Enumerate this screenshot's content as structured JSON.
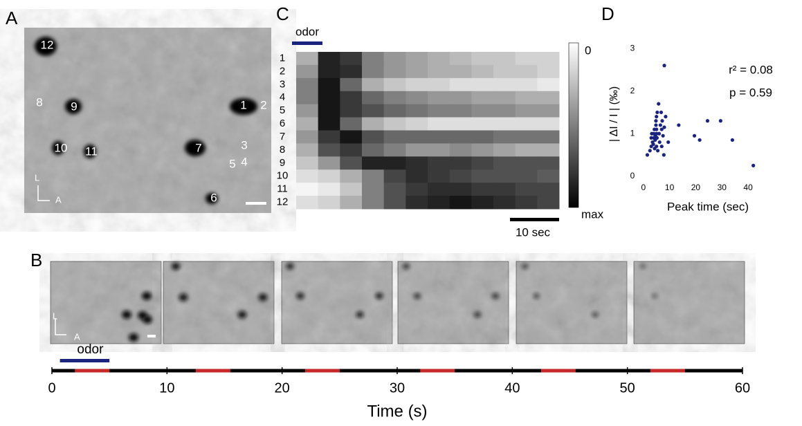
{
  "panel_labels": [
    "A",
    "B",
    "C",
    "D"
  ],
  "panel_a": {
    "cell_labels": [
      "12",
      "8",
      "9",
      "1",
      "2",
      "10",
      "11",
      "7",
      "3",
      "5",
      "4",
      "6"
    ],
    "axis_labels": [
      "L",
      "A"
    ]
  },
  "panel_b": {
    "axis_labels": [
      "L",
      "A"
    ]
  },
  "panel_c": {
    "odor_label": "odor",
    "colorbar_labels": [
      "0",
      "max"
    ],
    "scale_bar_label": "10 sec"
  },
  "chart_data": [
    {
      "type": "heatmap",
      "row_labels": [
        "1",
        "2",
        "3",
        "4",
        "5",
        "6",
        "7",
        "8",
        "9",
        "10",
        "11",
        "12"
      ],
      "zlim": [
        0,
        1
      ],
      "values": [
        [
          0.3,
          0.9,
          0.8,
          0.5,
          0.4,
          0.35,
          0.3,
          0.25,
          0.2,
          0.2,
          0.15,
          0.15
        ],
        [
          0.4,
          0.9,
          0.85,
          0.5,
          0.4,
          0.35,
          0.3,
          0.3,
          0.25,
          0.2,
          0.2,
          0.15
        ],
        [
          0.5,
          0.95,
          0.6,
          0.3,
          0.2,
          0.15,
          0.15,
          0.1,
          0.1,
          0.1,
          0.1,
          0.05
        ],
        [
          0.5,
          0.95,
          0.8,
          0.6,
          0.5,
          0.45,
          0.4,
          0.4,
          0.35,
          0.35,
          0.3,
          0.3
        ],
        [
          0.4,
          0.95,
          0.8,
          0.7,
          0.6,
          0.55,
          0.5,
          0.5,
          0.45,
          0.45,
          0.4,
          0.4
        ],
        [
          0.3,
          0.95,
          0.6,
          0.3,
          0.2,
          0.15,
          0.1,
          0.1,
          0.1,
          0.1,
          0.1,
          0.1
        ],
        [
          0.4,
          0.8,
          0.95,
          0.7,
          0.6,
          0.6,
          0.6,
          0.6,
          0.6,
          0.55,
          0.55,
          0.55
        ],
        [
          0.3,
          0.7,
          0.8,
          0.6,
          0.5,
          0.4,
          0.4,
          0.45,
          0.4,
          0.35,
          0.3,
          0.3
        ],
        [
          0.2,
          0.4,
          0.7,
          0.9,
          0.9,
          0.85,
          0.8,
          0.8,
          0.75,
          0.7,
          0.7,
          0.7
        ],
        [
          0.1,
          0.15,
          0.3,
          0.5,
          0.75,
          0.85,
          0.8,
          0.75,
          0.7,
          0.7,
          0.7,
          0.65
        ],
        [
          0.0,
          0.05,
          0.2,
          0.5,
          0.7,
          0.8,
          0.85,
          0.85,
          0.8,
          0.8,
          0.75,
          0.75
        ],
        [
          0.1,
          0.15,
          0.3,
          0.5,
          0.7,
          0.85,
          0.9,
          0.95,
          0.9,
          0.85,
          0.8,
          0.75
        ]
      ]
    },
    {
      "type": "scatter",
      "color": "#1a237e",
      "xlabel": "Peak time (sec)",
      "ylabel": "| ΔI / I | (‰)",
      "annotations": [
        "r² = 0.08",
        "p = 0.59"
      ],
      "x": [
        1.5,
        2.5,
        3,
        3,
        3.2,
        3.5,
        3.8,
        4,
        4,
        4.2,
        4.3,
        4.5,
        4.6,
        4.8,
        4.8,
        5,
        5,
        5,
        5,
        5.2,
        5.3,
        5.5,
        5.8,
        6,
        6.2,
        6.5,
        6.8,
        7,
        7,
        7.2,
        7.5,
        7.8,
        8,
        8,
        8.5,
        9.5,
        13.5,
        19.5,
        21.5,
        24.5,
        29.5,
        34,
        42
      ],
      "y": [
        0.5,
        0.6,
        0.7,
        0.9,
        1.0,
        0.8,
        0.75,
        0.9,
        1.0,
        1.1,
        0.65,
        0.85,
        0.95,
        1.2,
        1.3,
        0.7,
        1.0,
        1.1,
        1.4,
        0.9,
        1.5,
        0.6,
        1.7,
        1.0,
        0.8,
        1.2,
        1.5,
        1.1,
        0.7,
        1.3,
        0.95,
        0.5,
        2.6,
        1.15,
        1.4,
        0.8,
        1.2,
        0.95,
        0.85,
        1.3,
        1.3,
        0.85,
        0.25
      ],
      "xlim": [
        -1,
        45
      ],
      "ylim": [
        -0.15,
        3.1
      ],
      "xticks": [
        0,
        10,
        20,
        30,
        40
      ],
      "yticks": [
        0,
        1,
        2,
        3
      ]
    },
    {
      "type": "timeline",
      "xlabel": "Time (s)",
      "odor_label": "odor",
      "odor_interval": [
        0.7,
        5
      ],
      "intervals": [
        [
          2,
          5
        ],
        [
          12.5,
          15.5
        ],
        [
          22,
          25
        ],
        [
          32,
          35
        ],
        [
          42.5,
          45.5
        ],
        [
          52,
          55
        ]
      ],
      "xlim": [
        0,
        60
      ],
      "xticks": [
        0,
        10,
        20,
        30,
        40,
        50,
        60
      ]
    }
  ]
}
